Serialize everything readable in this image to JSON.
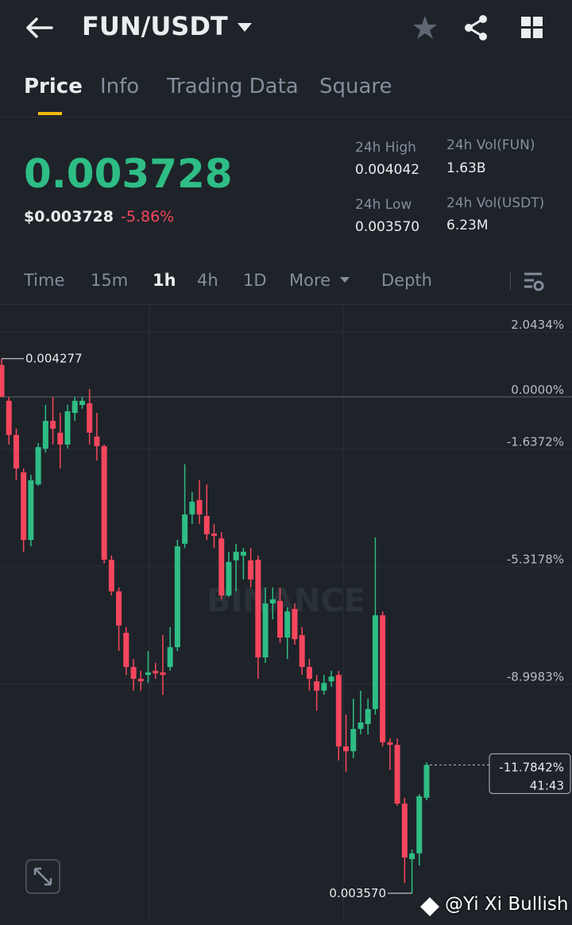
{
  "header": {
    "pair": "FUN/USDT"
  },
  "tabs": [
    "Price",
    "Info",
    "Trading Data",
    "Square"
  ],
  "ticker": {
    "price": "0.003728",
    "price_usd": "$0.003728",
    "change": "-5.86%",
    "stats": [
      {
        "label": "24h High",
        "value": "0.004042"
      },
      {
        "label": "24h Vol(FUN)",
        "value": "1.63B"
      },
      {
        "label": "24h Low",
        "value": "0.003570"
      },
      {
        "label": "24h Vol(USDT)",
        "value": "6.23M"
      }
    ]
  },
  "intervals": [
    "Time",
    "15m",
    "1h",
    "4h",
    "1D",
    "More",
    "Depth"
  ],
  "chart_data": {
    "type": "candlestick",
    "ylim": [
      -16.67,
      2.61
    ],
    "yticks": [
      {
        "value": 2.0434,
        "label": "2.0434%"
      },
      {
        "value": 0,
        "label": "0.0000%"
      },
      {
        "value": -1.6372,
        "label": "-1.6372%"
      },
      {
        "value": -5.3178,
        "label": "-5.3178%"
      },
      {
        "value": -8.9983,
        "label": "-8.9983%"
      }
    ],
    "grid": true,
    "up_color": "#2ebd85",
    "down_color": "#f6465d",
    "open": [
      0.75,
      -0.37,
      -1.44,
      -2.61,
      -4.73,
      -2.99,
      -1.87,
      -1.0,
      -1.37,
      -1.74,
      -0.75,
      -0.5,
      -0.45,
      -1.49,
      -1.79,
      -5.35,
      -6.34,
      -7.64,
      -8.71,
      -9.08,
      -8.96,
      -8.83,
      -8.88,
      -8.71,
      -8.09,
      -4.85,
      -3.93,
      -3.48,
      -3.98,
      -4.53,
      -4.68,
      -6.47,
      -5.37,
      -5.22,
      -5.37,
      -5.35,
      -8.41,
      -6.72,
      -6.64,
      -7.79,
      -6.89,
      -7.71,
      -8.71,
      -9.16,
      -9.45,
      -9.16,
      -8.96,
      -11.2,
      -11.35,
      -10.65,
      -10.5,
      -10.03,
      -7.09,
      -11.07,
      -11.15,
      -12.99,
      -14.73,
      -14.55,
      -12.81
    ],
    "high": [
      0.95,
      -0.25,
      -1.24,
      -2.49,
      -2.69,
      -1.69,
      -0.5,
      -0.25,
      -0.75,
      -0.5,
      -0.25,
      -0.25,
      0,
      -0.75,
      -1.74,
      -5.22,
      -6.22,
      -7.46,
      -8.46,
      -8.83,
      -8.21,
      -8.58,
      -7.71,
      -7.46,
      -4.73,
      -2.36,
      -3.23,
      -2.86,
      -2.99,
      -4.23,
      -4.48,
      -5.1,
      -4.85,
      -4.98,
      -4.98,
      -5.22,
      -6.22,
      -6.22,
      -6.22,
      -6.84,
      -6.72,
      -7.46,
      -8.46,
      -8.96,
      -8.96,
      -8.83,
      -8.83,
      -10.2,
      -9.7,
      -9.45,
      -9.7,
      -4.65,
      -6.97,
      -10.95,
      -10.95,
      -12.81,
      -14.43,
      -12.69,
      -11.7
    ],
    "low": [
      -0.25,
      -1.74,
      -2.86,
      -5.1,
      -4.93,
      -3.04,
      -1.99,
      -1.74,
      -2.49,
      -1.87,
      -1.0,
      -0.62,
      -1.74,
      -2.24,
      -5.47,
      -6.47,
      -8.21,
      -8.96,
      -9.45,
      -9.45,
      -9.21,
      -9.08,
      -9.58,
      -8.83,
      -8.21,
      -4.98,
      -4.23,
      -4.23,
      -4.73,
      -4.98,
      -6.59,
      -6.52,
      -6.34,
      -5.97,
      -6.22,
      -9.08,
      -8.58,
      -7.22,
      -7.96,
      -8.46,
      -8.01,
      -8.96,
      -9.45,
      -10.08,
      -9.58,
      -9.33,
      -11.64,
      -11.99,
      -11.57,
      -10.82,
      -10.82,
      -10.2,
      -11.2,
      -11.94,
      -13.06,
      -15.48,
      -15.8,
      -14.93,
      -12.89
    ],
    "close": [
      -0.25,
      -1.44,
      -2.49,
      -4.73,
      -2.86,
      -1.82,
      -1.0,
      -1.24,
      -1.74,
      -0.7,
      -0.37,
      -0.37,
      -1.37,
      -1.79,
      -5.35,
      -6.34,
      -7.41,
      -8.71,
      -9.08,
      -9.16,
      -8.88,
      -8.91,
      -8.96,
      -8.09,
      -4.93,
      -3.93,
      -3.53,
      -3.93,
      -4.55,
      -4.6,
      -6.47,
      -5.42,
      -5.1,
      -5.1,
      -5.97,
      -8.41,
      -6.72,
      -6.59,
      -7.79,
      -6.97,
      -7.84,
      -8.71,
      -9.08,
      -9.45,
      -9.21,
      -9.01,
      -11.2,
      -11.35,
      -10.65,
      -10.45,
      -10.03,
      -7.09,
      -11.07,
      -11.15,
      -12.99,
      -14.68,
      -14.55,
      -12.76,
      -11.78
    ],
    "max_label": "0.004277",
    "min_label": "0.003570",
    "last_label": "-11.7842%",
    "countdown": "41:43",
    "watermark": "BINANCE"
  },
  "footer": "@Yi Xi Bullish"
}
